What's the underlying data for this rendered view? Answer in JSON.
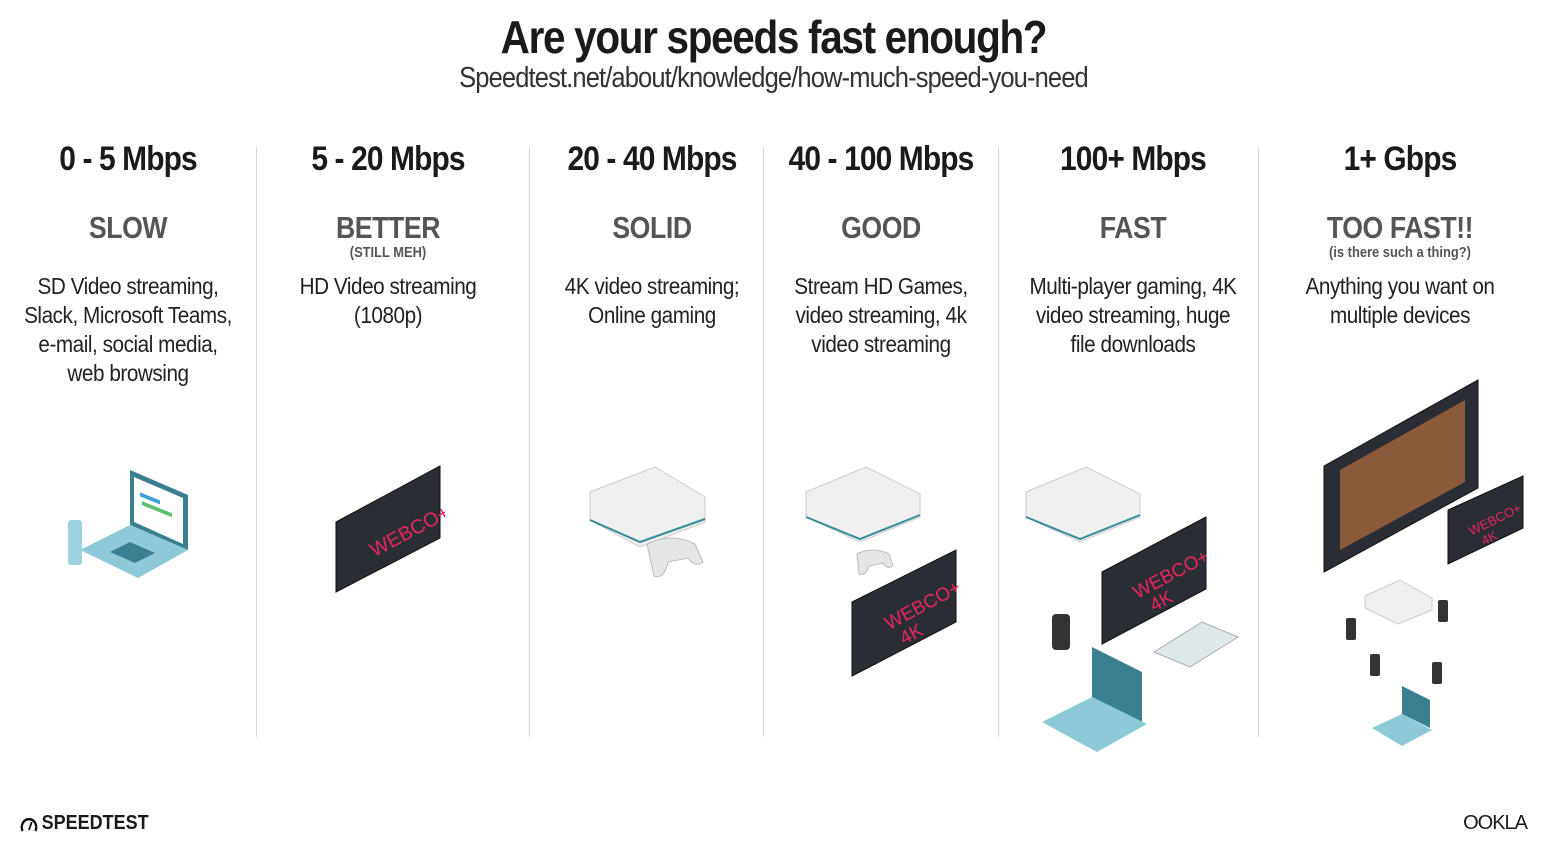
{
  "header": {
    "title": "Are your speeds fast enough?",
    "subtitle": "Speedtest.net/about/knowledge/how-much-speed-you-need"
  },
  "tiers": [
    {
      "speed": "0 - 5 Mbps",
      "label": "SLOW",
      "note": "",
      "desc": "SD Video streaming, Slack, Microsoft Teams, e-mail, social media, web browsing",
      "icons": [
        "laptop-icon",
        "phone-icon"
      ]
    },
    {
      "speed": "5 - 20 Mbps",
      "label": "BETTER",
      "note": "(STILL MEH)",
      "desc": "HD Video streaming (1080p)",
      "icons": [
        "tv-icon"
      ]
    },
    {
      "speed": "20 - 40 Mbps",
      "label": "SOLID",
      "note": "",
      "desc": "4K video streaming; Online gaming",
      "icons": [
        "console-icon",
        "controller-icon"
      ]
    },
    {
      "speed": "40 - 100 Mbps",
      "label": "GOOD",
      "note": "",
      "desc": "Stream HD Games, video streaming, 4k video streaming",
      "icons": [
        "console-icon",
        "controller-icon",
        "tv-4k-icon"
      ]
    },
    {
      "speed": "100+ Mbps",
      "label": "FAST",
      "note": "",
      "desc": "Multi-player gaming, 4K video streaming, huge file downloads",
      "icons": [
        "console-icon",
        "tv-4k-icon",
        "phone-icon",
        "laptop-icon"
      ]
    },
    {
      "speed": "1+ Gbps",
      "label": "TOO FAST!!",
      "note": "(is there such a thing?)",
      "desc": "Anything you want on multiple devices",
      "icons": [
        "tv-icon",
        "tv-4k-icon",
        "console-icon",
        "phone-icon",
        "laptop-icon"
      ]
    }
  ],
  "tv": {
    "brand": "WEBCO+",
    "brand_4k": "4K"
  },
  "footer": {
    "left_logo": "SPEEDTEST",
    "right_logo": "OOKLA"
  },
  "colors": {
    "tv_brand": "#e8265e",
    "laptop": "#8ec9d8",
    "divider": "#cfd8dc"
  }
}
